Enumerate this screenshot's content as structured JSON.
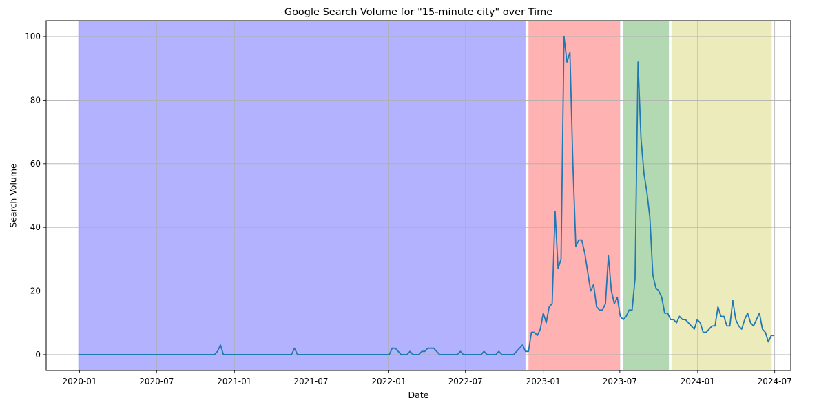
{
  "chart_data": {
    "type": "line",
    "title": "Google Search Volume for \"15-minute city\" over Time",
    "xlabel": "Date",
    "ylabel": "Search Volume",
    "xlim": [
      "2019-10-14",
      "2024-08-08"
    ],
    "ylim": [
      -5,
      105
    ],
    "xticks": [
      {
        "date": "2020-01-01",
        "label": "2020-01"
      },
      {
        "date": "2020-07-01",
        "label": "2020-07"
      },
      {
        "date": "2021-01-01",
        "label": "2021-01"
      },
      {
        "date": "2021-07-01",
        "label": "2021-07"
      },
      {
        "date": "2022-01-01",
        "label": "2022-01"
      },
      {
        "date": "2022-07-01",
        "label": "2022-07"
      },
      {
        "date": "2023-01-01",
        "label": "2023-01"
      },
      {
        "date": "2023-07-01",
        "label": "2023-07"
      },
      {
        "date": "2024-01-01",
        "label": "2024-01"
      },
      {
        "date": "2024-07-01",
        "label": "2024-07"
      }
    ],
    "yticks": [
      {
        "value": 0,
        "label": "0"
      },
      {
        "value": 20,
        "label": "20"
      },
      {
        "value": 40,
        "label": "40"
      },
      {
        "value": 60,
        "label": "60"
      },
      {
        "value": 80,
        "label": "80"
      },
      {
        "value": 100,
        "label": "100"
      }
    ],
    "grid": true,
    "regions": [
      {
        "start": "2019-12-29",
        "end": "2022-11-20",
        "color": "#0000ff",
        "alpha": 0.3
      },
      {
        "start": "2022-11-27",
        "end": "2023-06-30",
        "color": "#ff0000",
        "alpha": 0.3
      },
      {
        "start": "2023-07-08",
        "end": "2023-10-25",
        "color": "#008000",
        "alpha": 0.3
      },
      {
        "start": "2023-10-31",
        "end": "2024-06-24",
        "color": "#bcbd22",
        "alpha": 0.3
      }
    ],
    "series": [
      {
        "color": "#1f77b4",
        "points": [
          [
            "2019-12-29",
            0
          ],
          [
            "2020-11-15",
            0
          ],
          [
            "2020-11-22",
            1
          ],
          [
            "2020-11-29",
            3
          ],
          [
            "2020-12-06",
            0
          ],
          [
            "2021-05-16",
            0
          ],
          [
            "2021-05-23",
            2
          ],
          [
            "2021-05-30",
            0
          ],
          [
            "2022-01-02",
            0
          ],
          [
            "2022-01-09",
            2
          ],
          [
            "2022-01-16",
            2
          ],
          [
            "2022-01-23",
            1
          ],
          [
            "2022-01-30",
            0
          ],
          [
            "2022-02-13",
            0
          ],
          [
            "2022-02-20",
            1
          ],
          [
            "2022-02-27",
            0
          ],
          [
            "2022-03-13",
            0
          ],
          [
            "2022-03-20",
            1
          ],
          [
            "2022-03-27",
            1
          ],
          [
            "2022-04-03",
            2
          ],
          [
            "2022-04-17",
            2
          ],
          [
            "2022-04-24",
            1
          ],
          [
            "2022-05-01",
            0
          ],
          [
            "2022-06-12",
            0
          ],
          [
            "2022-06-19",
            1
          ],
          [
            "2022-06-26",
            0
          ],
          [
            "2022-08-07",
            0
          ],
          [
            "2022-08-14",
            1
          ],
          [
            "2022-08-21",
            0
          ],
          [
            "2022-09-11",
            0
          ],
          [
            "2022-09-18",
            1
          ],
          [
            "2022-09-25",
            0
          ],
          [
            "2022-10-23",
            0
          ],
          [
            "2022-11-06",
            2
          ],
          [
            "2022-11-13",
            3
          ],
          [
            "2022-11-20",
            1
          ],
          [
            "2022-11-27",
            1
          ],
          [
            "2022-12-04",
            7
          ],
          [
            "2022-12-11",
            7
          ],
          [
            "2022-12-18",
            6
          ],
          [
            "2022-12-25",
            8
          ],
          [
            "2023-01-01",
            13
          ],
          [
            "2023-01-08",
            10
          ],
          [
            "2023-01-15",
            15
          ],
          [
            "2023-01-22",
            16
          ],
          [
            "2023-01-29",
            45
          ],
          [
            "2023-02-05",
            27
          ],
          [
            "2023-02-12",
            30
          ],
          [
            "2023-02-19",
            100
          ],
          [
            "2023-02-26",
            92
          ],
          [
            "2023-03-05",
            95
          ],
          [
            "2023-03-12",
            60
          ],
          [
            "2023-03-19",
            34
          ],
          [
            "2023-03-26",
            36
          ],
          [
            "2023-04-02",
            36
          ],
          [
            "2023-04-09",
            32
          ],
          [
            "2023-04-16",
            26
          ],
          [
            "2023-04-23",
            20
          ],
          [
            "2023-04-30",
            22
          ],
          [
            "2023-05-07",
            15
          ],
          [
            "2023-05-14",
            14
          ],
          [
            "2023-05-21",
            14
          ],
          [
            "2023-05-28",
            16
          ],
          [
            "2023-06-04",
            31
          ],
          [
            "2023-06-11",
            20
          ],
          [
            "2023-06-18",
            16
          ],
          [
            "2023-06-25",
            18
          ],
          [
            "2023-07-02",
            12
          ],
          [
            "2023-07-09",
            11
          ],
          [
            "2023-07-16",
            12
          ],
          [
            "2023-07-23",
            14
          ],
          [
            "2023-07-30",
            14
          ],
          [
            "2023-08-06",
            24
          ],
          [
            "2023-08-13",
            92
          ],
          [
            "2023-08-20",
            68
          ],
          [
            "2023-08-27",
            57
          ],
          [
            "2023-09-03",
            51
          ],
          [
            "2023-09-10",
            43
          ],
          [
            "2023-09-17",
            25
          ],
          [
            "2023-09-24",
            21
          ],
          [
            "2023-10-01",
            20
          ],
          [
            "2023-10-08",
            18
          ],
          [
            "2023-10-15",
            13
          ],
          [
            "2023-10-22",
            13
          ],
          [
            "2023-10-29",
            11
          ],
          [
            "2023-11-05",
            11
          ],
          [
            "2023-11-12",
            10
          ],
          [
            "2023-11-19",
            12
          ],
          [
            "2023-11-26",
            11
          ],
          [
            "2023-12-03",
            11
          ],
          [
            "2023-12-10",
            10
          ],
          [
            "2023-12-17",
            9
          ],
          [
            "2023-12-24",
            8
          ],
          [
            "2023-12-31",
            11
          ],
          [
            "2024-01-07",
            10
          ],
          [
            "2024-01-14",
            7
          ],
          [
            "2024-01-21",
            7
          ],
          [
            "2024-01-28",
            8
          ],
          [
            "2024-02-04",
            9
          ],
          [
            "2024-02-11",
            9
          ],
          [
            "2024-02-18",
            15
          ],
          [
            "2024-02-25",
            12
          ],
          [
            "2024-03-03",
            12
          ],
          [
            "2024-03-10",
            9
          ],
          [
            "2024-03-17",
            9
          ],
          [
            "2024-03-24",
            17
          ],
          [
            "2024-03-31",
            11
          ],
          [
            "2024-04-07",
            9
          ],
          [
            "2024-04-14",
            8
          ],
          [
            "2024-04-21",
            11
          ],
          [
            "2024-04-28",
            13
          ],
          [
            "2024-05-05",
            10
          ],
          [
            "2024-05-12",
            9
          ],
          [
            "2024-05-19",
            11
          ],
          [
            "2024-05-26",
            13
          ],
          [
            "2024-06-02",
            8
          ],
          [
            "2024-06-09",
            7
          ],
          [
            "2024-06-16",
            4
          ],
          [
            "2024-06-23",
            6
          ],
          [
            "2024-06-30",
            6
          ]
        ]
      }
    ]
  }
}
